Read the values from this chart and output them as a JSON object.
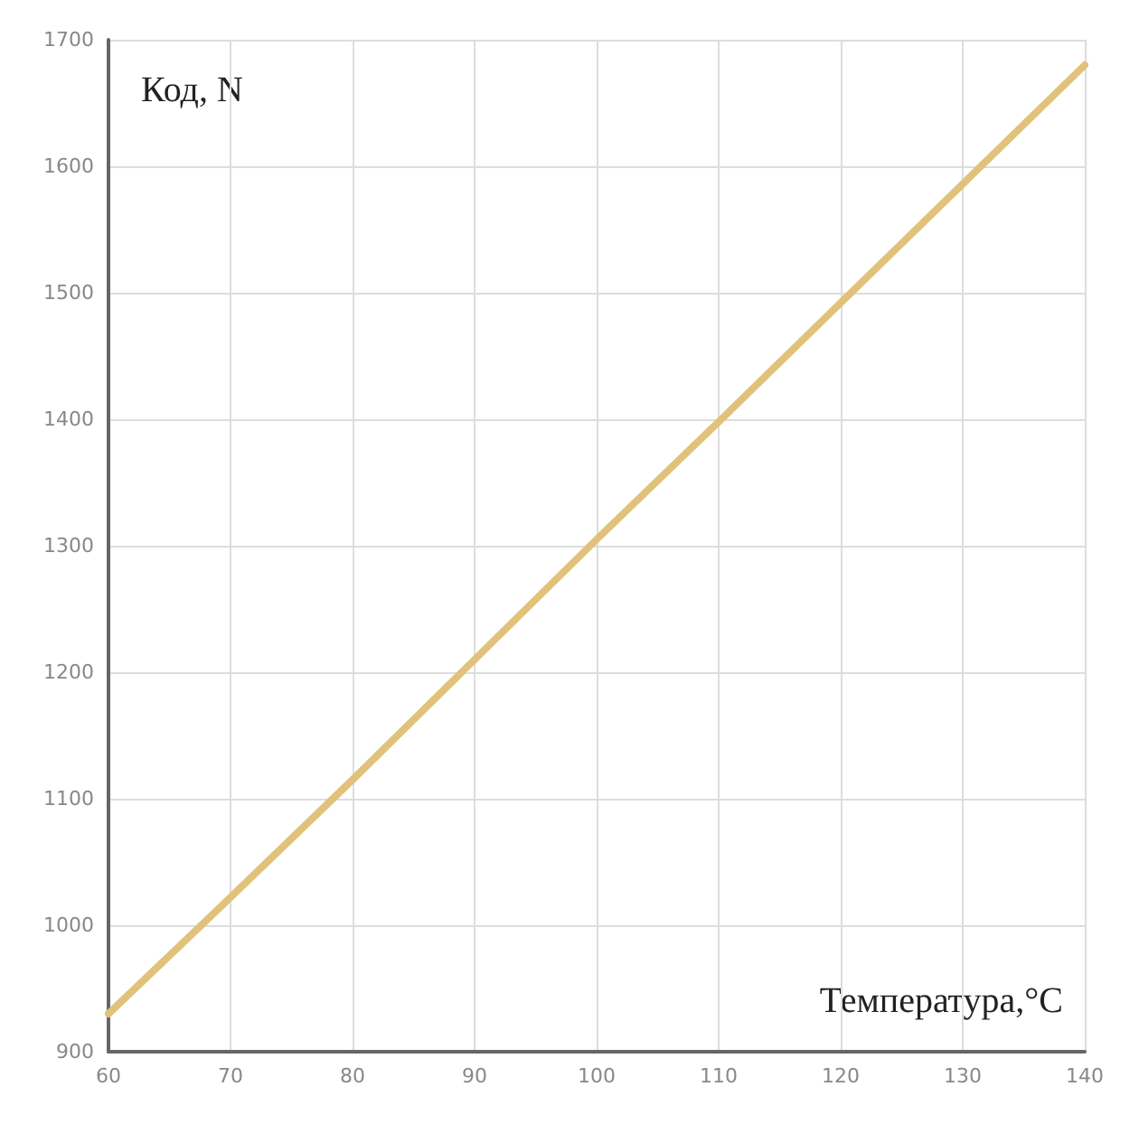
{
  "chart_data": {
    "type": "line",
    "xlabel": "Температура,°C",
    "ylabel": "Код, N",
    "x": [
      60,
      70,
      80,
      90,
      100,
      110,
      120,
      130,
      140
    ],
    "series": [
      {
        "color": "#e0c27a",
        "values": [
          930,
          1022,
          1115,
          1210,
          1305,
          1398,
          1492,
          1586,
          1680
        ]
      }
    ],
    "xlim": [
      60,
      140
    ],
    "xticks": [
      60,
      70,
      80,
      90,
      100,
      110,
      120,
      130,
      140
    ],
    "ylim": [
      900,
      1700
    ],
    "yticks": [
      900,
      1000,
      1100,
      1200,
      1300,
      1400,
      1500,
      1600,
      1700
    ],
    "grid": true,
    "marker": "none",
    "line_style": "solid"
  }
}
